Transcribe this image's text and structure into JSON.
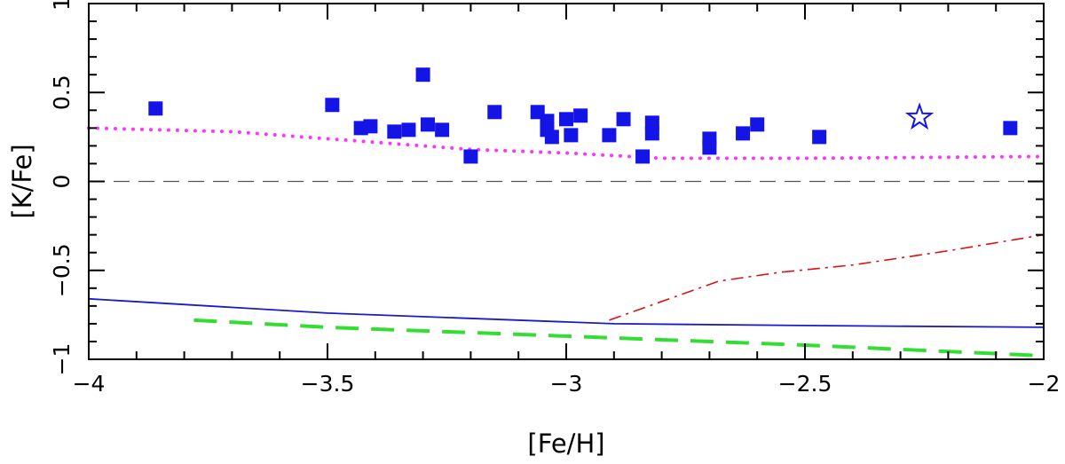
{
  "chart_data": {
    "type": "scatter",
    "xlabel": "[Fe/H]",
    "ylabel": "[K/Fe]",
    "xlim": [
      -4,
      -2
    ],
    "ylim": [
      -1,
      1
    ],
    "x_ticks": [
      -4,
      -3.5,
      -3,
      -2.5,
      -2
    ],
    "x_tick_labels": [
      "−4",
      "−3.5",
      "−3",
      "−2.5",
      "−2"
    ],
    "y_ticks": [
      -1,
      -0.5,
      0,
      0.5,
      1
    ],
    "y_tick_labels": [
      "−1",
      "−0.5",
      "0",
      "0.5",
      "1"
    ],
    "x_minor_step": 0.1,
    "y_minor_step": 0.1,
    "grid": false,
    "colors": {
      "squares": "#1414e6",
      "star": "#1414e6",
      "magenta_dotted": "#ff33ff",
      "reference_zero": "#555555",
      "blue_solid": "#1a1ac8",
      "red_dashdot": "#dd1111",
      "green_dashed": "#33dd33"
    },
    "series": [
      {
        "marker": "square",
        "points": [
          [
            -3.86,
            0.41
          ],
          [
            -3.49,
            0.43
          ],
          [
            -3.43,
            0.3
          ],
          [
            -3.41,
            0.31
          ],
          [
            -3.36,
            0.28
          ],
          [
            -3.33,
            0.29
          ],
          [
            -3.3,
            0.6
          ],
          [
            -3.29,
            0.32
          ],
          [
            -3.26,
            0.29
          ],
          [
            -3.2,
            0.14
          ],
          [
            -3.15,
            0.39
          ],
          [
            -3.06,
            0.39
          ],
          [
            -3.04,
            0.34
          ],
          [
            -3.04,
            0.29
          ],
          [
            -3.03,
            0.25
          ],
          [
            -3.0,
            0.35
          ],
          [
            -2.99,
            0.26
          ],
          [
            -2.97,
            0.37
          ],
          [
            -2.91,
            0.26
          ],
          [
            -2.88,
            0.35
          ],
          [
            -2.84,
            0.14
          ],
          [
            -2.82,
            0.33
          ],
          [
            -2.82,
            0.27
          ],
          [
            -2.7,
            0.24
          ],
          [
            -2.7,
            0.19
          ],
          [
            -2.63,
            0.27
          ],
          [
            -2.6,
            0.32
          ],
          [
            -2.47,
            0.25
          ],
          [
            -2.07,
            0.3
          ]
        ]
      },
      {
        "marker": "star",
        "points": [
          [
            -2.26,
            0.36
          ]
        ]
      },
      {
        "style": "dotted",
        "points": [
          [
            -4.0,
            0.3
          ],
          [
            -3.7,
            0.28
          ],
          [
            -3.5,
            0.24
          ],
          [
            -3.2,
            0.18
          ],
          [
            -3.0,
            0.16
          ],
          [
            -2.8,
            0.13
          ],
          [
            -2.5,
            0.13
          ],
          [
            -2.0,
            0.14
          ]
        ]
      },
      {
        "style": "reference",
        "points": [
          [
            -4.0,
            0.0
          ],
          [
            -2.0,
            0.0
          ]
        ]
      },
      {
        "style": "solid",
        "points": [
          [
            -4.0,
            -0.66
          ],
          [
            -3.5,
            -0.74
          ],
          [
            -3.0,
            -0.79
          ],
          [
            -2.9,
            -0.8
          ],
          [
            -2.5,
            -0.81
          ],
          [
            -2.0,
            -0.82
          ]
        ]
      },
      {
        "style": "dashdot",
        "points": [
          [
            -2.91,
            -0.78
          ],
          [
            -2.68,
            -0.56
          ],
          [
            -2.55,
            -0.51
          ],
          [
            -2.4,
            -0.47
          ],
          [
            -2.2,
            -0.39
          ],
          [
            -2.0,
            -0.3
          ]
        ]
      },
      {
        "style": "longdash",
        "points": [
          [
            -3.78,
            -0.78
          ],
          [
            -3.5,
            -0.82
          ],
          [
            -3.0,
            -0.87
          ],
          [
            -2.5,
            -0.92
          ],
          [
            -2.0,
            -0.98
          ]
        ]
      }
    ]
  }
}
